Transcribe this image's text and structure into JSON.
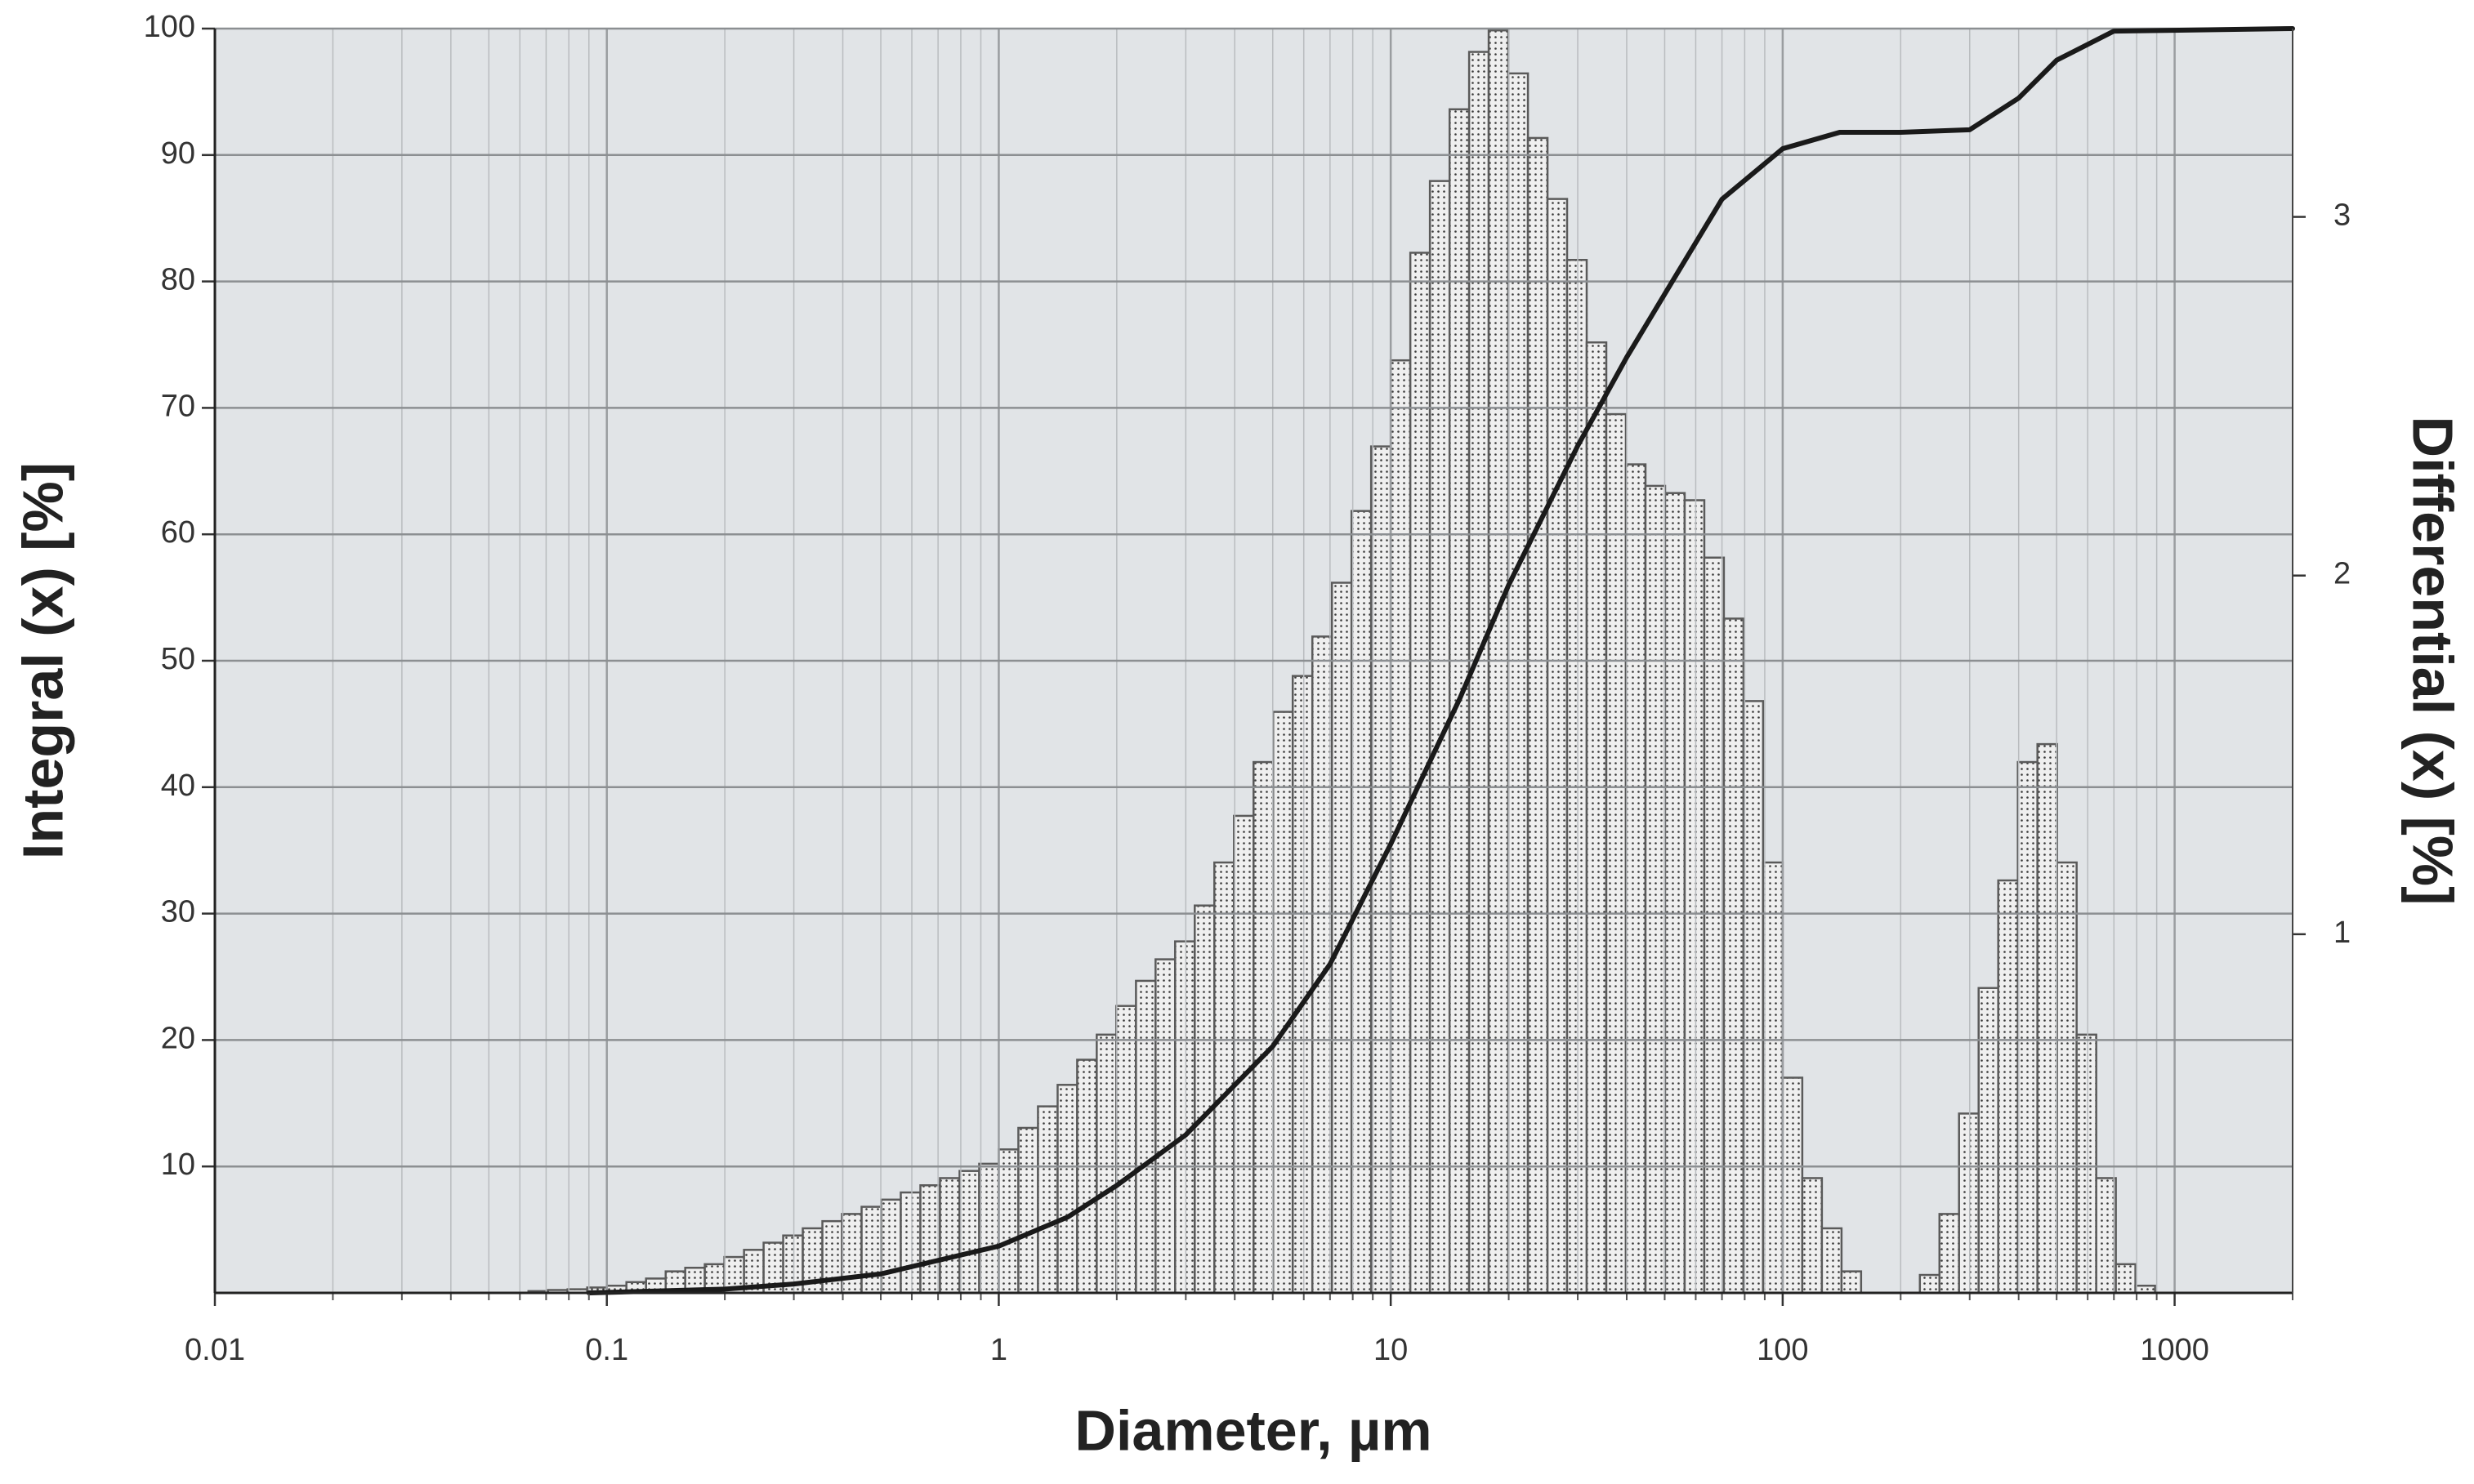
{
  "chart_data": {
    "type": "histogram",
    "xlabel": "Diameter, µm",
    "ylabel": "Integral (x) [%]",
    "y2label": "Differential (x) [%]",
    "xscale": "log",
    "xlim": [
      0.01,
      2000
    ],
    "xticks": [
      0.01,
      0.1,
      1,
      10,
      100,
      1000
    ],
    "ylim": [
      0,
      100
    ],
    "yticks": [
      10,
      20,
      30,
      40,
      50,
      60,
      70,
      80,
      90,
      100
    ],
    "y2lim": [
      0,
      3.525
    ],
    "y2ticks": [
      1,
      2,
      3
    ],
    "grid": true,
    "minor_grid": true,
    "background": "#e1e4e7",
    "histogram": {
      "axis": "y2",
      "color": "#efefef",
      "edgecolor": "#5a5a5a",
      "bins": [
        0.0631,
        0.0708,
        0.0794,
        0.0891,
        0.1,
        0.1122,
        0.1259,
        0.1413,
        0.1585,
        0.1778,
        0.1995,
        0.2239,
        0.2512,
        0.2818,
        0.3162,
        0.3548,
        0.3981,
        0.4467,
        0.5012,
        0.5623,
        0.631,
        0.7079,
        0.7943,
        0.8913,
        1,
        1.122,
        1.259,
        1.413,
        1.585,
        1.778,
        1.995,
        2.239,
        2.512,
        2.818,
        3.162,
        3.548,
        3.981,
        4.467,
        5.012,
        5.623,
        6.31,
        7.079,
        7.943,
        8.913,
        10,
        11.22,
        12.59,
        14.13,
        15.85,
        17.78,
        19.95,
        22.39,
        25.12,
        28.18,
        31.62,
        35.48,
        39.81,
        44.67,
        50.12,
        56.23,
        63.1,
        70.79,
        79.43,
        89.13,
        100,
        112.2,
        125.9,
        141.3,
        158.5,
        177.8,
        199.5,
        223.9,
        251.2,
        281.8,
        316.2,
        354.8,
        398.1,
        446.7,
        501.2,
        562.3,
        631,
        707.9,
        794.3,
        891.3
      ],
      "values": [
        0.005,
        0.008,
        0.01,
        0.015,
        0.02,
        0.03,
        0.04,
        0.06,
        0.07,
        0.08,
        0.1,
        0.12,
        0.14,
        0.16,
        0.18,
        0.2,
        0.22,
        0.24,
        0.26,
        0.28,
        0.3,
        0.32,
        0.34,
        0.36,
        0.4,
        0.46,
        0.52,
        0.58,
        0.65,
        0.72,
        0.8,
        0.87,
        0.93,
        0.98,
        1.08,
        1.2,
        1.33,
        1.48,
        1.62,
        1.72,
        1.83,
        1.98,
        2.18,
        2.36,
        2.6,
        2.9,
        3.1,
        3.3,
        3.46,
        3.52,
        3.4,
        3.22,
        3.05,
        2.88,
        2.65,
        2.45,
        2.31,
        2.25,
        2.23,
        2.21,
        2.05,
        1.88,
        1.65,
        1.2,
        0.6,
        0.32,
        0.18,
        0.06,
        0,
        0,
        0,
        0.05,
        0.22,
        0.5,
        0.85,
        1.15,
        1.48,
        1.53,
        1.2,
        0.72,
        0.32,
        0.08,
        0.02
      ]
    },
    "line": {
      "axis": "y",
      "color": "#1a1a1a",
      "x": [
        0.09,
        0.2,
        0.3,
        0.5,
        1,
        1.5,
        2,
        3,
        5,
        7,
        10,
        15,
        20,
        30,
        40,
        50,
        70,
        100,
        140,
        200,
        300,
        400,
        500,
        700,
        2000
      ],
      "values": [
        0,
        0.3,
        0.7,
        1.5,
        3.7,
        6,
        8.5,
        12.5,
        19.5,
        26,
        35.5,
        47,
        56,
        67,
        74,
        79,
        86.5,
        90.5,
        91.8,
        91.8,
        92,
        94.5,
        97.5,
        99.8,
        100
      ]
    }
  }
}
